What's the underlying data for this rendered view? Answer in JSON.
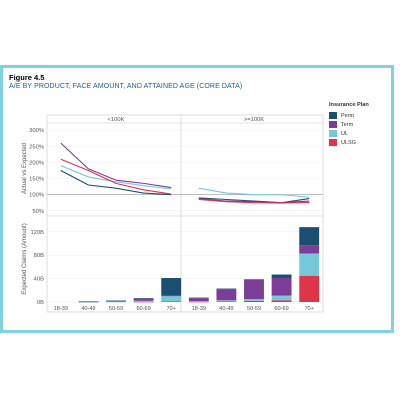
{
  "figure_label": "Figure 4.5",
  "figure_title": "A/E BY PRODUCT, FACE AMOUNT, AND ATTAINED AGE (CORE DATA)",
  "legend": {
    "title": "Insurance Plan",
    "items": [
      {
        "name": "Perm",
        "color": "#1b4f72"
      },
      {
        "name": "Term",
        "color": "#7d3c98"
      },
      {
        "name": "UL",
        "color": "#76c7d9"
      },
      {
        "name": "ULSG",
        "color": "#e0344a"
      }
    ]
  },
  "chart_data": [
    {
      "type": "line",
      "panel_top": "<100K",
      "ylabel": "Actual vs Expected",
      "yticks": [
        "300%",
        "250%",
        "200%",
        "150%",
        "100%",
        "50%"
      ],
      "ylim": [
        40,
        310
      ],
      "reference_line": 100,
      "categories": [
        "18-39",
        "40-49",
        "50-59",
        "60-69",
        "70+"
      ],
      "series": [
        {
          "name": "Perm",
          "values": [
            175,
            130,
            120,
            105,
            100
          ]
        },
        {
          "name": "Term",
          "values": [
            260,
            180,
            145,
            135,
            122
          ]
        },
        {
          "name": "UL",
          "values": [
            190,
            155,
            140,
            128,
            118
          ]
        },
        {
          "name": "ULSG",
          "values": [
            210,
            175,
            135,
            115,
            102
          ]
        }
      ]
    },
    {
      "type": "line",
      "panel_top": ">=100K",
      "ylim": [
        40,
        310
      ],
      "reference_line": 100,
      "categories": [
        "18-39",
        "40-49",
        "50-59",
        "60-69",
        "70+"
      ],
      "series": [
        {
          "name": "Perm",
          "values": [
            90,
            85,
            80,
            75,
            88
          ]
        },
        {
          "name": "Term",
          "values": [
            88,
            80,
            78,
            75,
            80
          ]
        },
        {
          "name": "UL",
          "values": [
            120,
            105,
            100,
            100,
            92
          ]
        },
        {
          "name": "ULSG",
          "values": [
            85,
            78,
            75,
            74,
            76
          ]
        }
      ]
    },
    {
      "type": "bar",
      "stacked": true,
      "ylabel": "Expected Claims (Amount)",
      "yticks": [
        "120B",
        "80B",
        "40B",
        "0B"
      ],
      "ylim": [
        0,
        130
      ],
      "categories": [
        "18-39",
        "40-49",
        "50-59",
        "60-69",
        "70+"
      ],
      "series": [
        {
          "name": "ULSG",
          "values": [
            0,
            0,
            0,
            0.5,
            1
          ]
        },
        {
          "name": "UL",
          "values": [
            0,
            0.2,
            0.5,
            1.5,
            9
          ]
        },
        {
          "name": "Term",
          "values": [
            0,
            0.5,
            1,
            2,
            2
          ]
        },
        {
          "name": "Perm",
          "values": [
            0,
            0.3,
            1,
            2.5,
            29
          ]
        }
      ]
    },
    {
      "type": "bar",
      "stacked": true,
      "ylim": [
        0,
        130
      ],
      "categories": [
        "18-39",
        "40-49",
        "50-59",
        "60-69",
        "70+"
      ],
      "series": [
        {
          "name": "ULSG",
          "values": [
            0.5,
            1,
            2,
            3,
            45
          ]
        },
        {
          "name": "UL",
          "values": [
            1,
            2,
            3,
            8,
            38
          ]
        },
        {
          "name": "Term",
          "values": [
            5,
            19,
            33,
            30,
            14
          ]
        },
        {
          "name": "Perm",
          "values": [
            1,
            1,
            1,
            6,
            31
          ]
        }
      ]
    }
  ]
}
